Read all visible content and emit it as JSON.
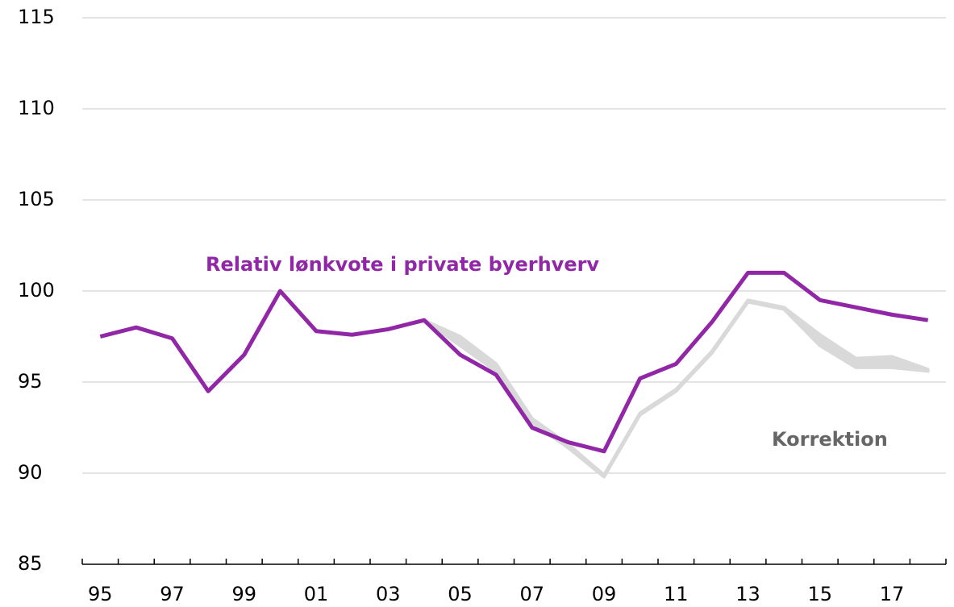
{
  "chart_data": {
    "type": "line",
    "categories": [
      "95",
      null,
      "97",
      null,
      "99",
      null,
      "01",
      null,
      "03",
      null,
      "05",
      null,
      "07",
      null,
      "09",
      null,
      "11",
      null,
      "13",
      null,
      "15",
      null,
      "17",
      null
    ],
    "series": [
      {
        "name": "Relativ lønkvote i private byerhverv",
        "color": "#9127a6",
        "values": [
          97.5,
          98.0,
          97.4,
          94.5,
          96.5,
          100.0,
          97.8,
          97.6,
          97.9,
          98.4,
          96.5,
          95.4,
          92.5,
          91.7,
          91.2,
          95.2,
          96.0,
          98.3,
          101.0,
          101.0,
          99.5,
          99.1,
          98.7,
          98.4
        ]
      },
      {
        "name": "Korrektion",
        "color": "#d9d9d9",
        "label_color": "#666666",
        "upper": [
          null,
          null,
          null,
          null,
          null,
          null,
          null,
          null,
          null,
          98.4,
          97.5,
          96.0,
          93.0,
          91.6,
          89.9,
          93.3,
          94.6,
          96.7,
          99.5,
          99.1,
          97.6,
          96.3,
          96.4,
          95.7
        ],
        "lower": [
          null,
          null,
          null,
          null,
          null,
          null,
          null,
          null,
          null,
          98.4,
          97.0,
          95.6,
          92.8,
          91.4,
          89.8,
          93.2,
          94.5,
          96.6,
          99.4,
          99.0,
          97.0,
          95.8,
          95.8,
          95.6
        ]
      }
    ],
    "ylim": [
      85,
      115
    ],
    "yticks": [
      85,
      90,
      95,
      100,
      105,
      110,
      115
    ],
    "grid": true
  }
}
